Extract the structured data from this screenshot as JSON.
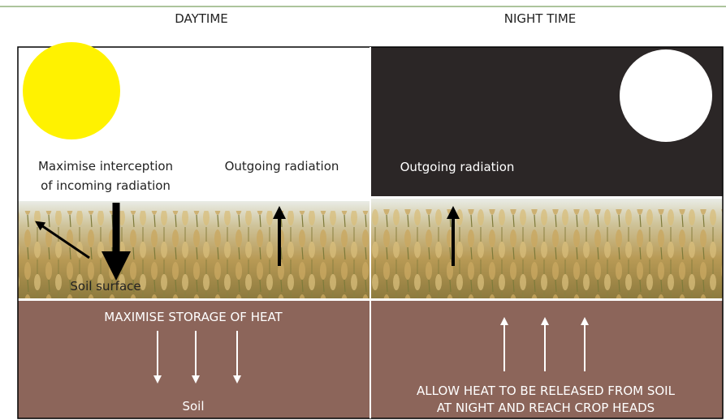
{
  "headers": {
    "day": "DAYTIME",
    "night": "NIGHT TIME"
  },
  "day": {
    "interception": [
      "Maximise interception",
      "of incoming radiation"
    ],
    "outgoing": "Outgoing radiation",
    "soil_surface": "Soil surface",
    "storage": "MAXIMISE STORAGE OF HEAT",
    "soil": "Soil"
  },
  "night": {
    "outgoing": "Outgoing radiation",
    "release": [
      "ALLOW HEAT TO BE RELEASED FROM SOIL",
      "AT NIGHT AND REACH CROP HEADS"
    ]
  }
}
